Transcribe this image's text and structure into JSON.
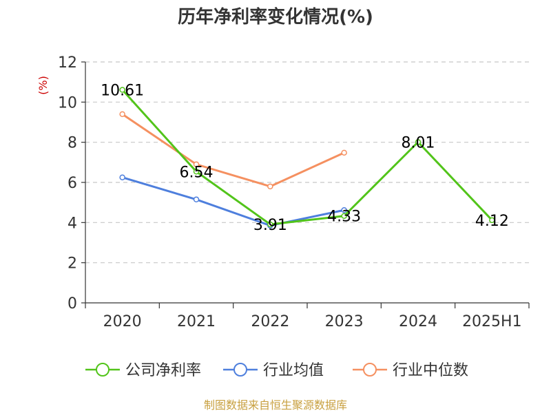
{
  "chart_data": {
    "type": "line",
    "title": "历年净利率变化情况(%)",
    "ylabel": "(%)",
    "xlabel": "",
    "categories": [
      "2020",
      "2021",
      "2022",
      "2023",
      "2024",
      "2025H1"
    ],
    "ylim": [
      0,
      12
    ],
    "yticks": [
      0,
      2,
      4,
      6,
      8,
      10,
      12
    ],
    "grid": true,
    "legend_position": "bottom",
    "series": [
      {
        "name": "公司净利率",
        "color": "#52c41a",
        "values": [
          10.61,
          6.54,
          3.91,
          4.33,
          8.01,
          4.12
        ],
        "labels": [
          "10.61",
          "6.54",
          "3.91",
          "4.33",
          "8.01",
          "4.12"
        ]
      },
      {
        "name": "行业均值",
        "color": "#4e7fdd",
        "values": [
          6.25,
          5.15,
          3.85,
          4.62,
          null,
          null
        ]
      },
      {
        "name": "行业中位数",
        "color": "#f59060",
        "values": [
          9.4,
          6.9,
          5.8,
          7.48,
          null,
          null
        ]
      }
    ]
  },
  "unit_color": "#cc0000",
  "source": {
    "text": "制图数据来自恒生聚源数据库",
    "color": "#c8a040"
  }
}
